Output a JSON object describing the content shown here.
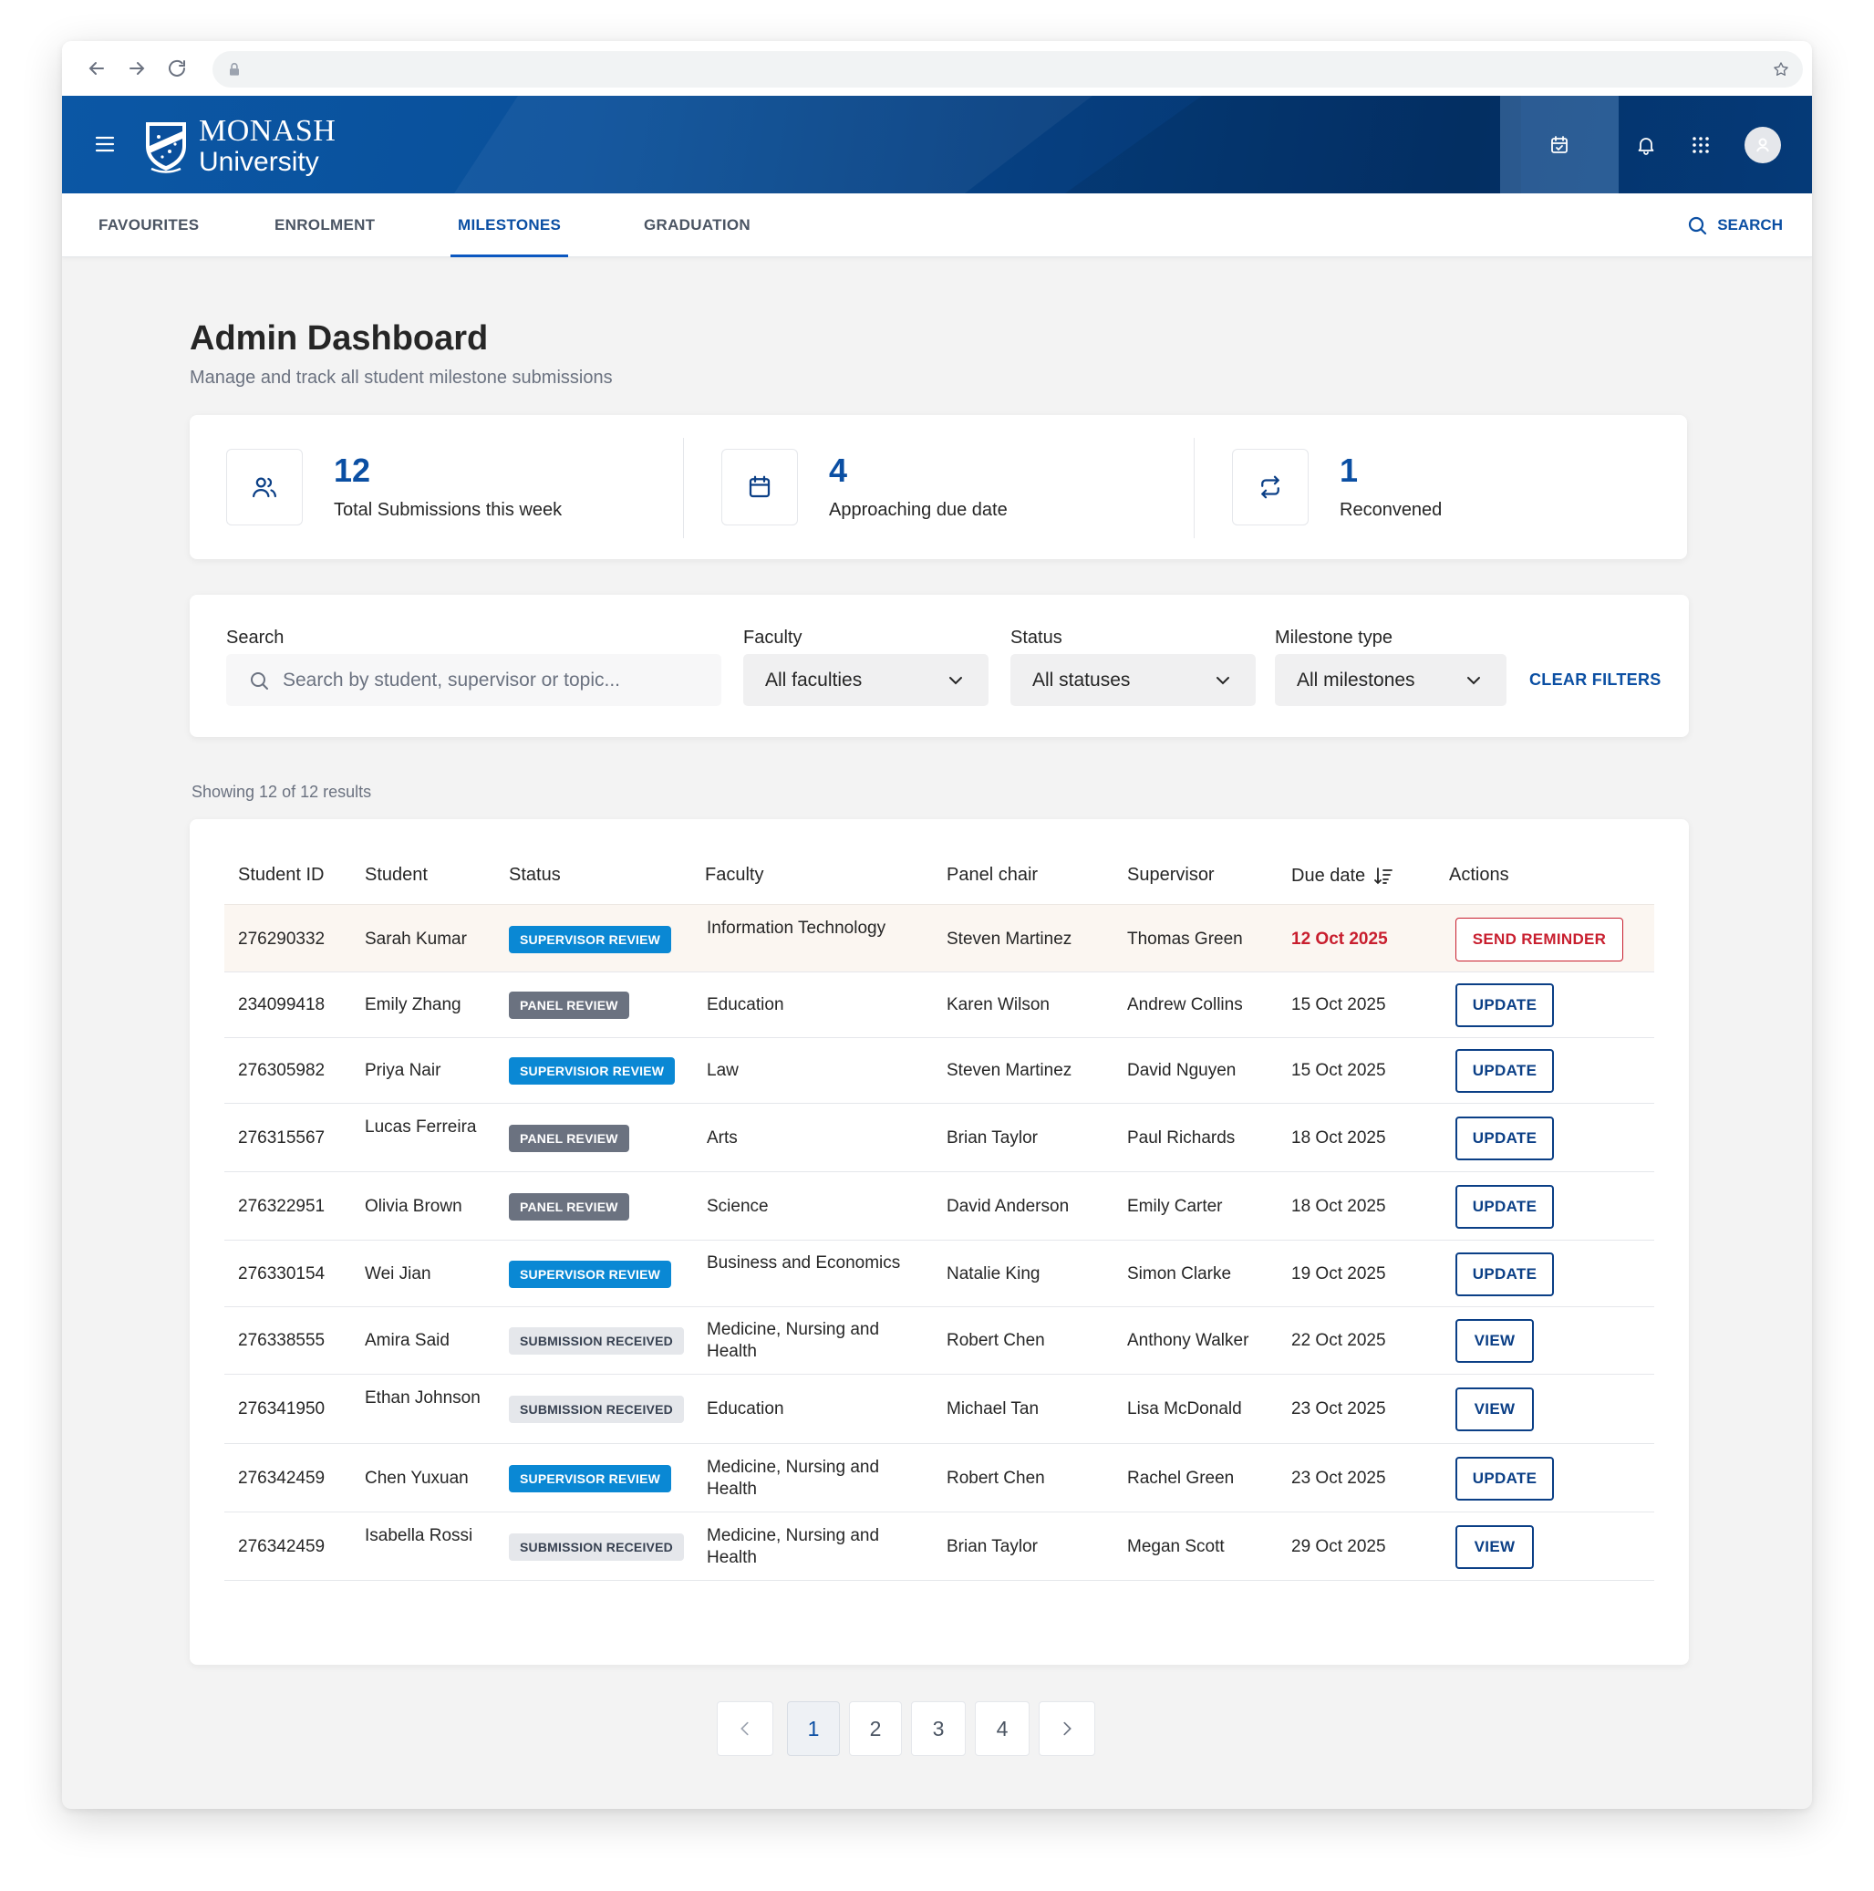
{
  "header": {
    "logo_line1": "MONASH",
    "logo_line2": "University"
  },
  "tabs": [
    {
      "label": "FAVOURITES"
    },
    {
      "label": "ENROLMENT"
    },
    {
      "label": "MILESTONES"
    },
    {
      "label": "GRADUATION"
    }
  ],
  "tab_search_label": "SEARCH",
  "page": {
    "title": "Admin Dashboard",
    "subtitle": "Manage and track all student milestone submissions"
  },
  "stats": [
    {
      "value": "12",
      "label": "Total Submissions this week",
      "icon": "users-icon"
    },
    {
      "value": "4",
      "label": "Approaching due date",
      "icon": "calendar-icon"
    },
    {
      "value": "1",
      "label": "Reconvened",
      "icon": "repeat-icon"
    }
  ],
  "filters": {
    "search_label": "Search",
    "search_placeholder": "Search by student, supervisor or topic...",
    "faculty_label": "Faculty",
    "faculty_value": "All faculties",
    "status_label": "Status",
    "status_value": "All statuses",
    "milestone_label": "Milestone type",
    "milestone_value": "All milestones",
    "clear_label": "CLEAR FILTERS"
  },
  "showing": "Showing 12 of 12 results",
  "table": {
    "headers": [
      "Student ID",
      "Student",
      "Status",
      "Faculty",
      "Panel chair",
      "Supervisor",
      "Due date",
      "Actions"
    ],
    "rows": [
      {
        "id": "276290332",
        "student": "Sarah Kumar",
        "status": "SUPERVISOR REVIEW",
        "faculty": "Information Technology",
        "chair": "Steven Martinez",
        "supervisor": "Thomas Green",
        "due": "12 Oct 2025",
        "action": "SEND REMINDER"
      },
      {
        "id": "234099418",
        "student": "Emily Zhang",
        "status": "PANEL REVIEW",
        "faculty": "Education",
        "chair": "Karen Wilson",
        "supervisor": "Andrew Collins",
        "due": "15 Oct 2025",
        "action": "UPDATE"
      },
      {
        "id": "276305982",
        "student": "Priya Nair",
        "status": "SUPERVISIOR REVIEW",
        "faculty": "Law",
        "chair": "Steven Martinez",
        "supervisor": "David Nguyen",
        "due": "15 Oct 2025",
        "action": "UPDATE"
      },
      {
        "id": "276315567",
        "student": "Lucas Ferreira",
        "status": "PANEL REVIEW",
        "faculty": "Arts",
        "chair": "Brian Taylor",
        "supervisor": "Paul Richards",
        "due": "18 Oct 2025",
        "action": "UPDATE"
      },
      {
        "id": "276322951",
        "student": "Olivia Brown",
        "status": "PANEL REVIEW",
        "faculty": "Science",
        "chair": "David Anderson",
        "supervisor": "Emily Carter",
        "due": "18 Oct 2025",
        "action": "UPDATE"
      },
      {
        "id": "276330154",
        "student": "Wei Jian",
        "status": "SUPERVISOR REVIEW",
        "faculty": "Business and Economics",
        "chair": "Natalie King",
        "supervisor": "Simon Clarke",
        "due": "19 Oct 2025",
        "action": "UPDATE"
      },
      {
        "id": "276338555",
        "student": "Amira Said",
        "status": "SUBMISSION RECEIVED",
        "faculty": "Medicine, Nursing and Health",
        "chair": "Robert Chen",
        "supervisor": "Anthony Walker",
        "due": "22 Oct 2025",
        "action": "VIEW"
      },
      {
        "id": "276341950",
        "student": "Ethan Johnson",
        "status": "SUBMISSION RECEIVED",
        "faculty": "Education",
        "chair": "Michael Tan",
        "supervisor": "Lisa McDonald",
        "due": "23 Oct 2025",
        "action": "VIEW"
      },
      {
        "id": "276342459",
        "student": "Chen Yuxuan",
        "status": "SUPERVISOR REVIEW",
        "faculty": "Medicine, Nursing and Health",
        "chair": "Robert Chen",
        "supervisor": "Rachel Green",
        "due": "23 Oct 2025",
        "action": "UPDATE"
      },
      {
        "id": "276342459",
        "student": "Isabella Rossi",
        "status": "SUBMISSION RECEIVED",
        "faculty": "Medicine, Nursing and Health",
        "chair": "Brian Taylor",
        "supervisor": "Megan Scott",
        "due": "29 Oct 2025",
        "action": "VIEW"
      }
    ]
  },
  "pagination": {
    "pages": [
      "1",
      "2",
      "3",
      "4"
    ],
    "current": "1"
  },
  "colors": {
    "brand_blue": "#0b4fa3",
    "supervisor_badge": "#0a88d4",
    "panel_badge": "#6b7280",
    "alert_red": "#c81e2e"
  }
}
